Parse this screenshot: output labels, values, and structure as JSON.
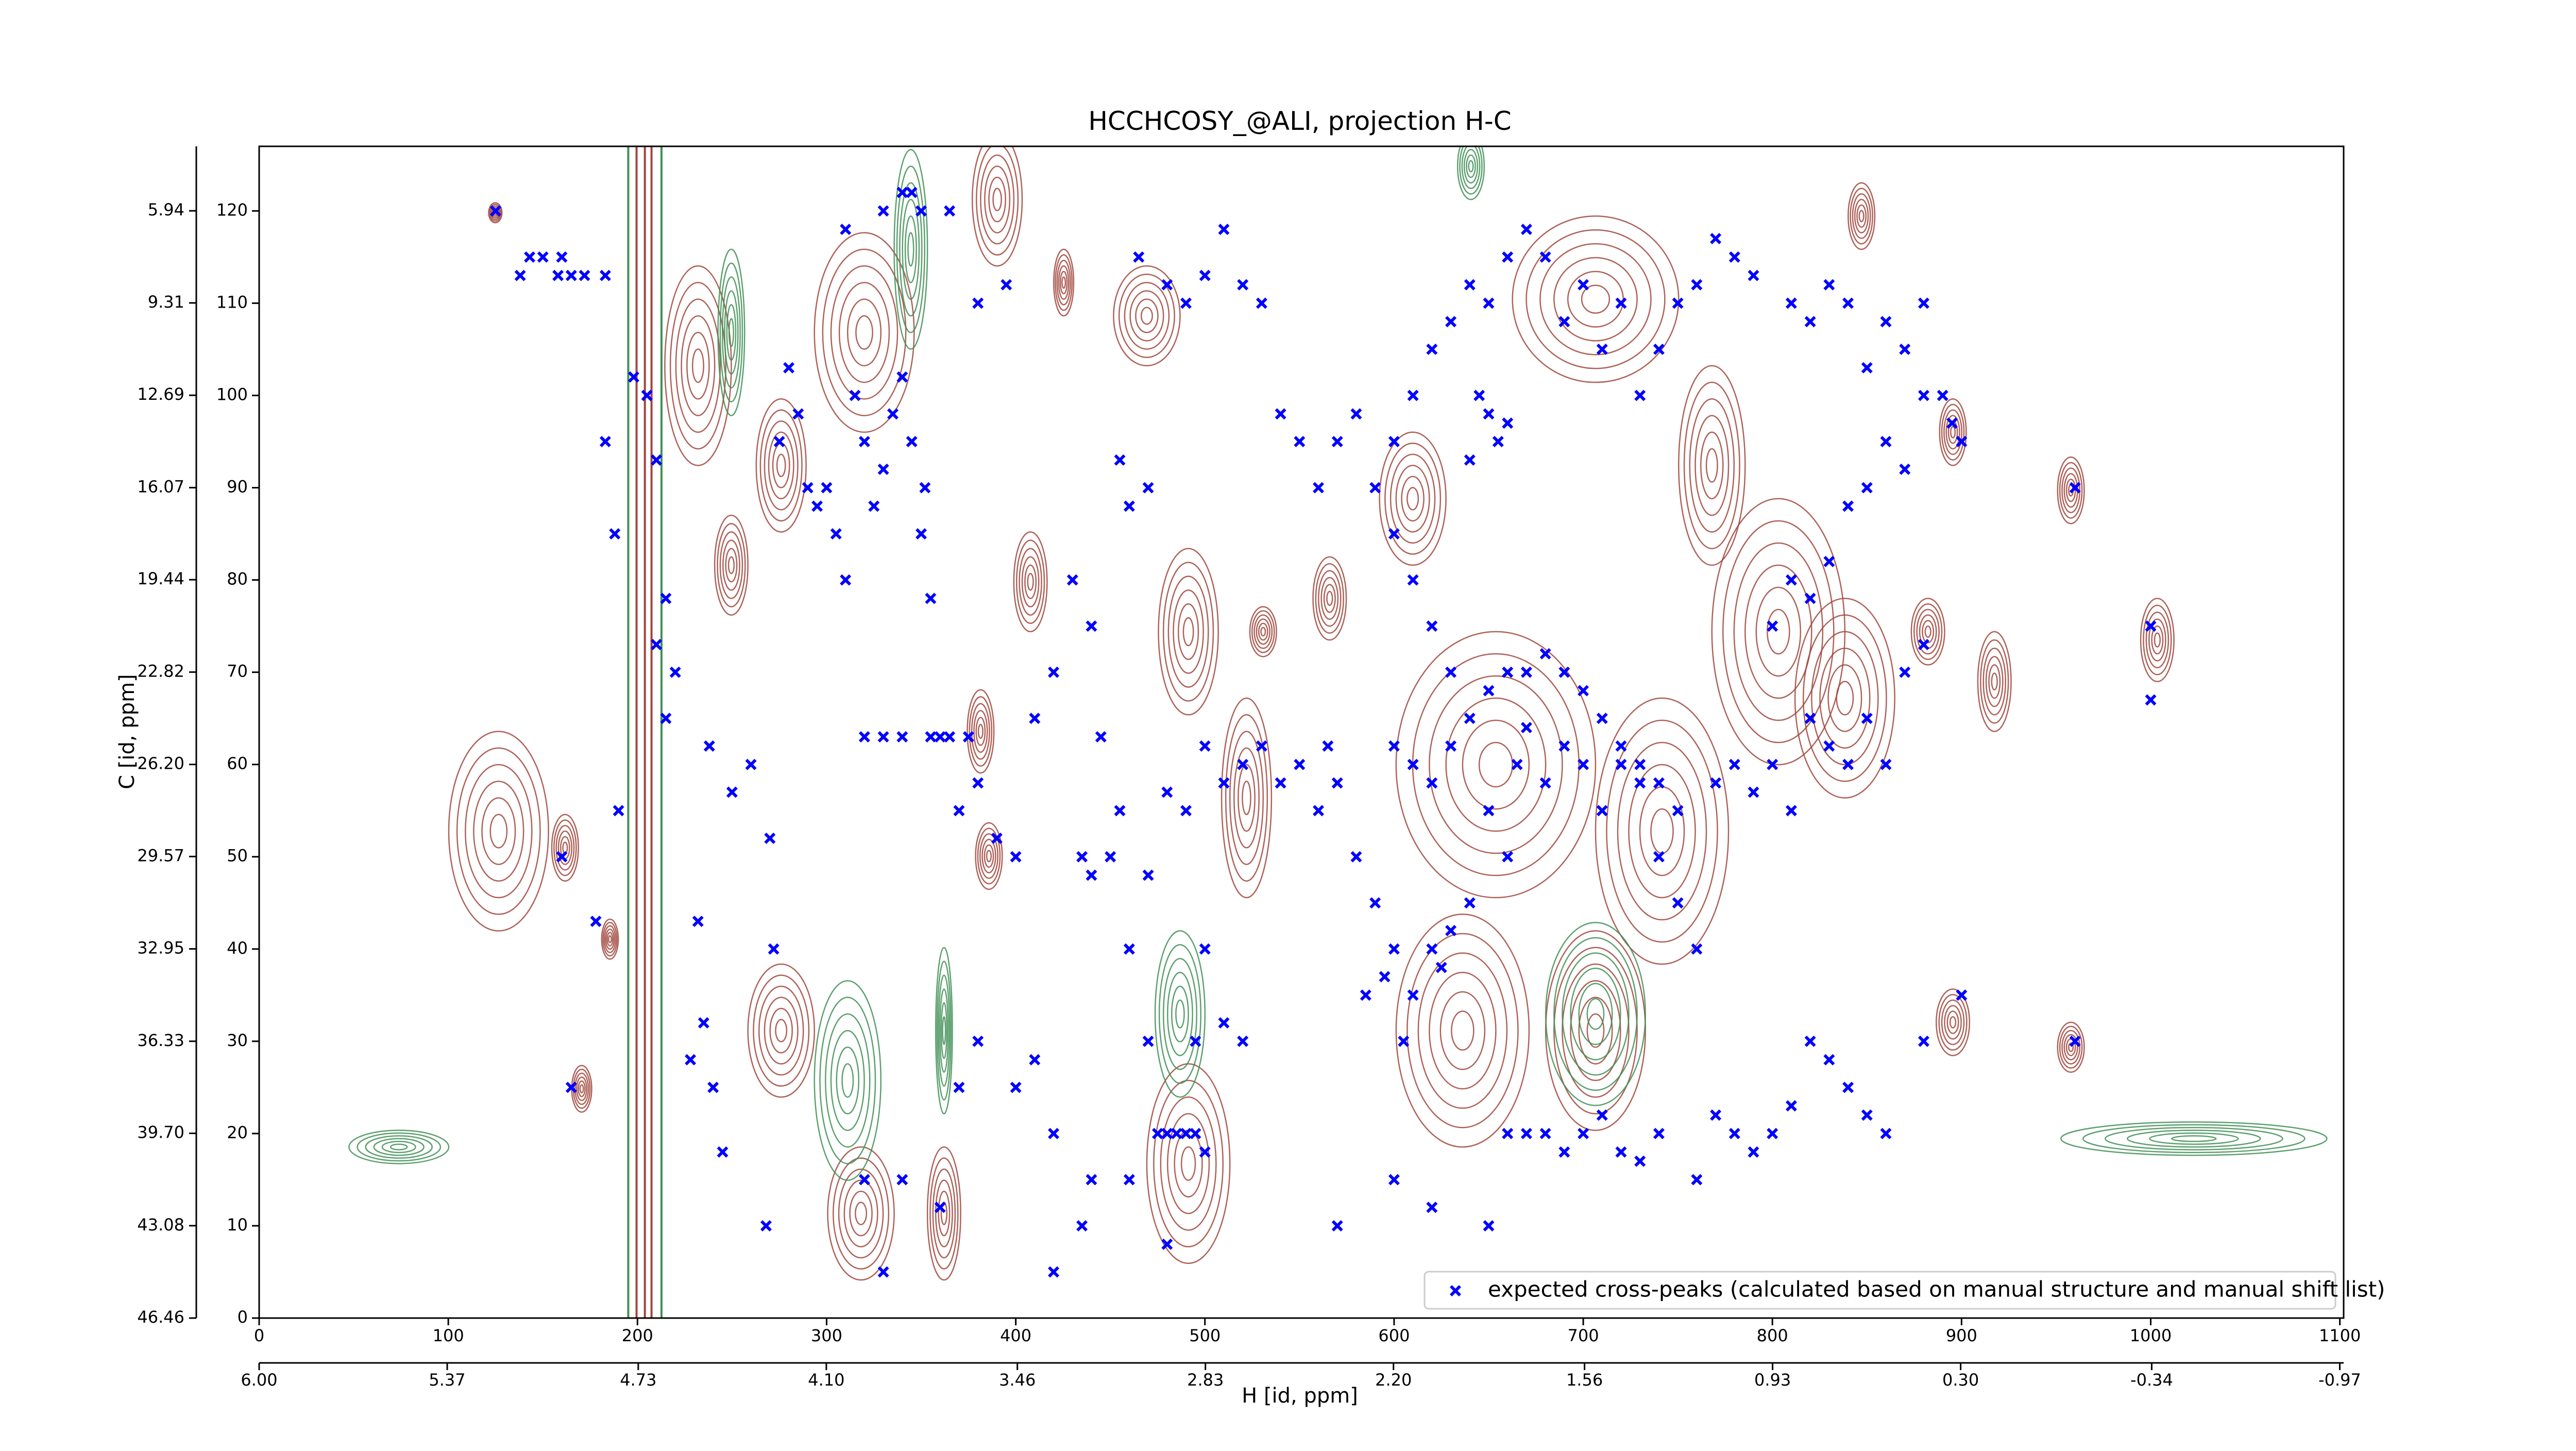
{
  "chart_data": {
    "type": "scatter",
    "title": "HCCHCOSY_@ALI, projection H-C",
    "xlabel": "H [id, ppm]",
    "ylabel": "C [id, ppm]",
    "xlim": [
      0,
      1102
    ],
    "xticks": [
      0,
      100,
      200,
      300,
      400,
      500,
      600,
      700,
      800,
      900,
      1000,
      1100
    ],
    "x2lim": [
      6.0,
      -0.983
    ],
    "x2ticks": [
      {
        "value": 6.0,
        "label": "6.00"
      },
      {
        "value": 5.37,
        "label": "5.37"
      },
      {
        "value": 4.73,
        "label": "4.73"
      },
      {
        "value": 4.1,
        "label": "4.10"
      },
      {
        "value": 3.46,
        "label": "3.46"
      },
      {
        "value": 2.83,
        "label": "2.83"
      },
      {
        "value": 2.2,
        "label": "2.20"
      },
      {
        "value": 1.56,
        "label": "1.56"
      },
      {
        "value": 0.93,
        "label": "0.93"
      },
      {
        "value": 0.3,
        "label": "0.30"
      },
      {
        "value": -0.34,
        "label": "-0.34"
      },
      {
        "value": -0.97,
        "label": "-0.97"
      }
    ],
    "ylim": [
      0,
      127
    ],
    "yticks": [
      0,
      10,
      20,
      30,
      40,
      50,
      60,
      70,
      80,
      90,
      100,
      110,
      120
    ],
    "y2lim": [
      46.46,
      3.58
    ],
    "y2ticks": [
      46.46,
      43.08,
      {
        "value": 39.7,
        "label": "39.70"
      },
      36.33,
      32.95,
      29.57,
      {
        "value": 26.2,
        "label": "26.20"
      },
      22.82,
      19.44,
      16.07,
      12.69,
      9.31,
      5.94
    ],
    "legend": "lower right",
    "series": [
      {
        "name": "expected cross-peaks (calculated based on manual structure and manual shift list)",
        "color": "#0000ff",
        "x": [
          125,
          138,
          143,
          150,
          158,
          160,
          165,
          172,
          183,
          188,
          160,
          165,
          178,
          190,
          183,
          198,
          205,
          210,
          215,
          220,
          210,
          215,
          228,
          232,
          235,
          240,
          245,
          238,
          250,
          260,
          268,
          270,
          272,
          275,
          280,
          285,
          290,
          295,
          300,
          305,
          310,
          315,
          320,
          325,
          330,
          335,
          340,
          345,
          350,
          352,
          355,
          330,
          340,
          345,
          350,
          365,
          380,
          395,
          310,
          320,
          330,
          340,
          355,
          360,
          365,
          370,
          375,
          380,
          390,
          400,
          410,
          420,
          430,
          440,
          445,
          455,
          435,
          440,
          450,
          460,
          470,
          475,
          480,
          485,
          490,
          495,
          500,
          495,
          500,
          510,
          520,
          470,
          480,
          490,
          500,
          510,
          520,
          530,
          540,
          550,
          560,
          565,
          570,
          580,
          590,
          600,
          585,
          595,
          605,
          610,
          620,
          625,
          630,
          640,
          650,
          660,
          665,
          670,
          680,
          690,
          700,
          710,
          720,
          730,
          740,
          750,
          760,
          600,
          610,
          620,
          630,
          640,
          650,
          660,
          670,
          680,
          690,
          700,
          710,
          720,
          730,
          740,
          750,
          770,
          780,
          790,
          800,
          810,
          820,
          830,
          840,
          850,
          860,
          870,
          880,
          800,
          810,
          820,
          830,
          840,
          850,
          860,
          870,
          880,
          890,
          900,
          810,
          820,
          830,
          840,
          850,
          860,
          870,
          880,
          790,
          780,
          770,
          760,
          750,
          740,
          730,
          720,
          710,
          700,
          690,
          680,
          670,
          660,
          650,
          640,
          630,
          620,
          610,
          600,
          590,
          580,
          570,
          560,
          550,
          540,
          530,
          520,
          510,
          500,
          490,
          480,
          465,
          455,
          460,
          470,
          640,
          645,
          650,
          655,
          660,
          600,
          610,
          620,
          630,
          660,
          670,
          680,
          690,
          700,
          710,
          720,
          730,
          740,
          760,
          770,
          780,
          790,
          800,
          810,
          820,
          830,
          840,
          850,
          860,
          880,
          900,
          960,
          960,
          1000,
          1000,
          895,
          420,
          460,
          480,
          330,
          320,
          340,
          360,
          370,
          380,
          400,
          410,
          420,
          435,
          440,
          570,
          600,
          650,
          620
        ],
        "y": [
          120,
          113,
          115,
          115,
          113,
          115,
          113,
          113,
          113,
          85,
          50,
          25,
          43,
          55,
          95,
          102,
          100,
          93,
          78,
          70,
          73,
          65,
          28,
          43,
          32,
          25,
          18,
          62,
          57,
          60,
          10,
          52,
          40,
          95,
          103,
          98,
          90,
          88,
          90,
          85,
          80,
          100,
          95,
          88,
          92,
          98,
          102,
          95,
          85,
          90,
          78,
          120,
          122,
          122,
          120,
          120,
          110,
          112,
          118,
          63,
          63,
          63,
          63,
          63,
          63,
          55,
          63,
          58,
          52,
          50,
          65,
          70,
          80,
          75,
          63,
          55,
          50,
          48,
          50,
          40,
          30,
          20,
          20,
          20,
          20,
          20,
          18,
          30,
          40,
          32,
          30,
          48,
          57,
          55,
          62,
          58,
          60,
          62,
          58,
          60,
          55,
          62,
          58,
          50,
          45,
          40,
          35,
          37,
          30,
          35,
          40,
          38,
          42,
          45,
          55,
          50,
          60,
          64,
          58,
          62,
          60,
          55,
          60,
          58,
          50,
          45,
          40,
          62,
          60,
          58,
          62,
          65,
          68,
          70,
          70,
          72,
          70,
          68,
          65,
          62,
          60,
          58,
          55,
          58,
          60,
          57,
          60,
          55,
          65,
          62,
          60,
          65,
          60,
          70,
          73,
          75,
          80,
          78,
          82,
          88,
          90,
          95,
          92,
          100,
          100,
          95,
          110,
          108,
          112,
          110,
          103,
          108,
          105,
          110,
          113,
          115,
          117,
          112,
          110,
          105,
          100,
          110,
          105,
          112,
          108,
          115,
          118,
          115,
          110,
          112,
          108,
          105,
          100,
          95,
          90,
          98,
          95,
          90,
          95,
          98,
          110,
          112,
          118,
          113,
          110,
          112,
          115,
          93,
          88,
          90,
          93,
          100,
          98,
          95,
          97,
          85,
          80,
          75,
          70,
          20,
          20,
          20,
          18,
          20,
          22,
          18,
          17,
          20,
          15,
          22,
          20,
          18,
          20,
          23,
          30,
          28,
          25,
          22,
          20,
          30,
          35,
          30,
          90,
          75,
          67,
          97,
          5,
          15,
          8,
          5,
          15,
          15,
          12,
          25,
          30,
          25,
          28,
          20,
          10,
          15,
          10,
          15,
          10,
          12
        ]
      }
    ]
  }
}
